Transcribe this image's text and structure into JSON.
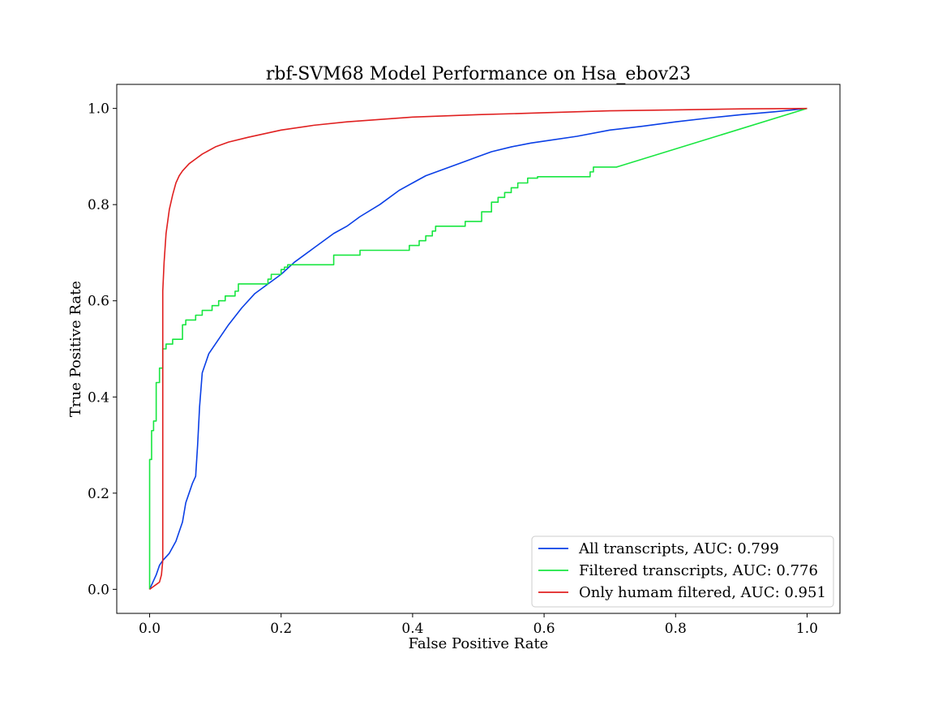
{
  "chart_data": {
    "type": "line",
    "title": "rbf-SVM68 Model Performance on Hsa_ebov23",
    "xlabel": "False Positive Rate",
    "ylabel": "True Positive Rate",
    "xlim": [
      -0.05,
      1.05
    ],
    "ylim": [
      -0.05,
      1.05
    ],
    "xticks": [
      0.0,
      0.2,
      0.4,
      0.6,
      0.8,
      1.0
    ],
    "yticks": [
      0.0,
      0.2,
      0.4,
      0.6,
      0.8,
      1.0
    ],
    "xtick_labels": [
      "0.0",
      "0.2",
      "0.4",
      "0.6",
      "0.8",
      "1.0"
    ],
    "ytick_labels": [
      "0.0",
      "0.2",
      "0.4",
      "0.6",
      "0.8",
      "1.0"
    ],
    "grid": false,
    "legend_position": "lower-right",
    "series": [
      {
        "name": "All transcripts, AUC: 0.799",
        "color": "#0a3fe6",
        "x": [
          0.0,
          0.005,
          0.01,
          0.015,
          0.02,
          0.03,
          0.04,
          0.05,
          0.055,
          0.06,
          0.065,
          0.07,
          0.073,
          0.076,
          0.08,
          0.09,
          0.1,
          0.12,
          0.14,
          0.16,
          0.18,
          0.2,
          0.22,
          0.25,
          0.28,
          0.3,
          0.32,
          0.35,
          0.38,
          0.4,
          0.42,
          0.45,
          0.48,
          0.5,
          0.52,
          0.55,
          0.58,
          0.6,
          0.65,
          0.7,
          0.75,
          0.8,
          0.85,
          0.9,
          0.95,
          1.0
        ],
        "y": [
          0.0,
          0.015,
          0.03,
          0.05,
          0.06,
          0.075,
          0.1,
          0.14,
          0.18,
          0.2,
          0.22,
          0.235,
          0.3,
          0.38,
          0.45,
          0.49,
          0.51,
          0.55,
          0.585,
          0.615,
          0.635,
          0.655,
          0.68,
          0.71,
          0.74,
          0.755,
          0.775,
          0.8,
          0.83,
          0.845,
          0.86,
          0.875,
          0.89,
          0.9,
          0.91,
          0.92,
          0.928,
          0.932,
          0.942,
          0.955,
          0.963,
          0.972,
          0.98,
          0.987,
          0.993,
          1.0
        ]
      },
      {
        "name": "Filtered transcripts, AUC: 0.776",
        "color": "#18e640",
        "x": [
          0.0,
          0.0,
          0.003,
          0.003,
          0.006,
          0.006,
          0.01,
          0.01,
          0.015,
          0.015,
          0.02,
          0.02,
          0.025,
          0.025,
          0.035,
          0.035,
          0.05,
          0.05,
          0.055,
          0.055,
          0.07,
          0.07,
          0.08,
          0.08,
          0.095,
          0.095,
          0.105,
          0.105,
          0.115,
          0.115,
          0.13,
          0.13,
          0.135,
          0.135,
          0.18,
          0.18,
          0.185,
          0.185,
          0.2,
          0.2,
          0.205,
          0.205,
          0.21,
          0.21,
          0.28,
          0.28,
          0.32,
          0.32,
          0.395,
          0.395,
          0.41,
          0.41,
          0.42,
          0.42,
          0.43,
          0.43,
          0.435,
          0.435,
          0.44,
          0.44,
          0.48,
          0.48,
          0.505,
          0.505,
          0.52,
          0.52,
          0.53,
          0.53,
          0.54,
          0.54,
          0.55,
          0.55,
          0.56,
          0.56,
          0.575,
          0.575,
          0.59,
          0.59,
          0.67,
          0.67,
          0.675,
          0.675,
          0.71,
          1.0
        ],
        "y": [
          0.0,
          0.27,
          0.27,
          0.33,
          0.33,
          0.35,
          0.35,
          0.43,
          0.43,
          0.46,
          0.46,
          0.5,
          0.5,
          0.51,
          0.51,
          0.52,
          0.52,
          0.55,
          0.55,
          0.56,
          0.56,
          0.57,
          0.57,
          0.58,
          0.58,
          0.59,
          0.59,
          0.6,
          0.6,
          0.61,
          0.61,
          0.62,
          0.62,
          0.635,
          0.635,
          0.645,
          0.645,
          0.655,
          0.655,
          0.665,
          0.665,
          0.67,
          0.67,
          0.675,
          0.675,
          0.695,
          0.695,
          0.705,
          0.705,
          0.715,
          0.715,
          0.725,
          0.725,
          0.735,
          0.735,
          0.745,
          0.745,
          0.755,
          0.755,
          0.755,
          0.755,
          0.765,
          0.765,
          0.785,
          0.785,
          0.805,
          0.805,
          0.815,
          0.815,
          0.825,
          0.825,
          0.835,
          0.835,
          0.845,
          0.845,
          0.855,
          0.855,
          0.858,
          0.858,
          0.868,
          0.868,
          0.878,
          0.878,
          1.0
        ]
      },
      {
        "name": "Only humam filtered, AUC: 0.951",
        "color": "#e02020",
        "x": [
          0.0,
          0.005,
          0.01,
          0.015,
          0.018,
          0.02,
          0.02,
          0.022,
          0.025,
          0.03,
          0.035,
          0.04,
          0.045,
          0.05,
          0.06,
          0.07,
          0.08,
          0.1,
          0.12,
          0.15,
          0.2,
          0.25,
          0.3,
          0.4,
          0.5,
          0.6,
          0.7,
          0.8,
          0.9,
          1.0
        ],
        "y": [
          0.0,
          0.005,
          0.01,
          0.015,
          0.03,
          0.06,
          0.62,
          0.68,
          0.74,
          0.79,
          0.82,
          0.845,
          0.86,
          0.87,
          0.885,
          0.895,
          0.905,
          0.92,
          0.93,
          0.94,
          0.955,
          0.965,
          0.972,
          0.982,
          0.987,
          0.991,
          0.995,
          0.997,
          0.999,
          1.0
        ]
      }
    ]
  }
}
